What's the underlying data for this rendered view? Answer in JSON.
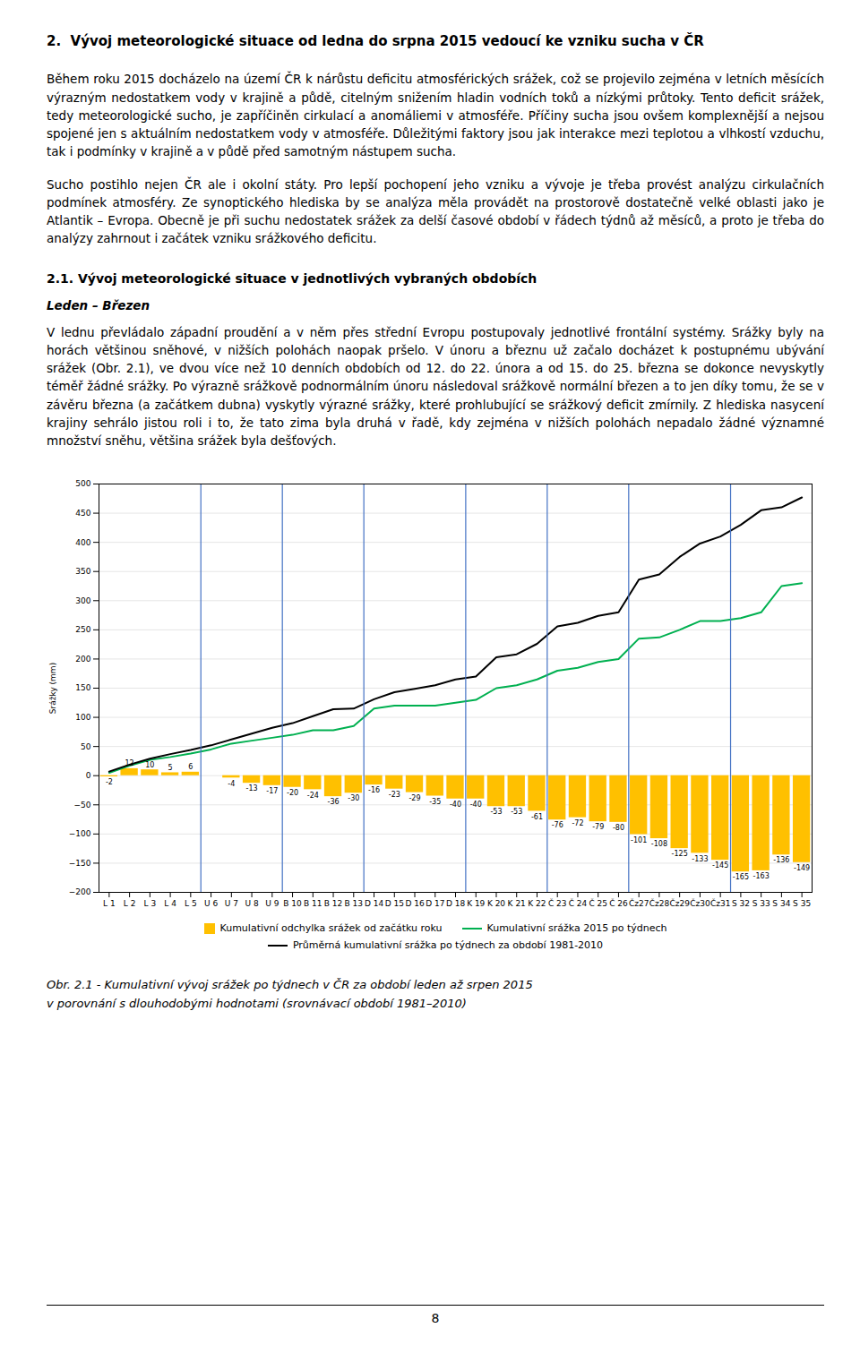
{
  "heading": "2.  Vývoj meteorologické situace od ledna do srpna 2015 vedoucí ke vzniku sucha v ČR",
  "para1": "Během roku 2015 docházelo na území ČR k nárůstu deficitu atmosférických srážek, což se projevilo zejména v letních měsících výrazným nedostatkem vody v krajině a půdě, citelným snižením hladin vodních toků a nízkými průtoky. Tento deficit srážek, tedy meteorologické sucho, je zapříčiněn cirkulací a anomáliemi v atmosféře. Příčiny sucha jsou ovšem komplexnější a nejsou spojené jen s aktuálním nedostatkem vody v atmosféře. Důležitými faktory jsou jak interakce mezi teplotou a vlhkostí vzduchu, tak i podmínky v krajině a v půdě před samotným nástupem sucha.",
  "para2": "Sucho postihlo nejen ČR ale i okolní státy. Pro lepší pochopení jeho vzniku a vývoje je třeba provést analýzu cirkulačních podmínek atmosféry. Ze synoptického hlediska by se analýza měla provádět na prostorově dostatečně velké oblasti jako je Atlantik – Evropa. Obecně je při suchu nedostatek srážek za delší časové období v řádech týdnů až měsíců, a proto je třeba do analýzy zahrnout i začátek vzniku srážkového deficitu.",
  "subheading": "2.1. Vývoj meteorologické situace v jednotlivých vybraných obdobích",
  "subsubheading": "Leden – Březen",
  "para3": "V lednu převládalo západní proudění a v něm přes střední Evropu postupovaly jednotlivé frontální systémy. Srážky byly na horách většinou sněhové, v nižších polohách naopak pršelo. V únoru a březnu už začalo docházet k postupnému ubývání srážek (Obr. 2.1), ve dvou více než 10 denních obdobích od 12. do 22. února a od 15. do 25. března se dokonce nevyskytly téměř žádné srážky. Po výrazně srážkově podnormálním únoru následoval srážkově normální březen a to jen díky tomu, že se v závěru března (a začátkem dubna) vyskytly výrazné srážky, které prohlubující se srážkový deficit zmírnily. Z hlediska nasycení krajiny sehrálo jistou roli i to, že tato zima byla druhá v řadě, kdy zejména v nižších polohách nepadalo žádné významné množství sněhu, většina srážek byla dešťových.",
  "chart_data": {
    "type": "bar",
    "ylabel": "Srážky (mm)",
    "categories": [
      "L 1",
      "L 2",
      "L 3",
      "L 4",
      "L 5",
      "U 6",
      "U 7",
      "U 8",
      "U 9",
      "B 10",
      "B 11",
      "B 12",
      "B 13",
      "D 14",
      "D 15",
      "D 16",
      "D 17",
      "D 18",
      "K 19",
      "K 20",
      "K 21",
      "K 22",
      "Č 23",
      "Č 24",
      "Č 25",
      "Č 26",
      "Čz27",
      "Čz28",
      "Čz29",
      "Čz30",
      "Čz31",
      "S 32",
      "S 33",
      "S 34",
      "S 35"
    ],
    "series": [
      {
        "name": "Kumulativní odchylka srážek od začátku roku",
        "type": "bar",
        "color": "#FFC000",
        "data_labels": true,
        "values": [
          -2,
          12,
          10,
          5,
          6,
          0,
          -4,
          -13,
          -17,
          -20,
          -24,
          -36,
          -30,
          -16,
          -23,
          -29,
          -35,
          -40,
          -40,
          -53,
          -53,
          -61,
          -76,
          -72,
          -79,
          -80,
          -101,
          -108,
          -125,
          -133,
          -145,
          -165,
          -163,
          -136,
          -149
        ]
      },
      {
        "name": "Kumulativní srážka 2015 po týdnech",
        "type": "line",
        "color": "#00B050",
        "values": [
          5,
          17,
          27,
          32,
          38,
          45,
          55,
          60,
          65,
          70,
          78,
          78,
          85,
          115,
          120,
          120,
          120,
          125,
          130,
          150,
          155,
          165,
          180,
          185,
          195,
          200,
          235,
          237,
          250,
          265,
          265,
          270,
          280,
          325,
          330
        ]
      },
      {
        "name": "Průměrná kumulativní srážka po týdnech za období 1981-2010",
        "type": "line",
        "color": "#000000",
        "values": [
          7,
          19,
          29,
          37,
          44,
          52,
          62,
          72,
          82,
          90,
          102,
          114,
          115,
          131,
          143,
          149,
          155,
          165,
          170,
          203,
          208,
          226,
          256,
          262,
          274,
          280,
          336,
          345,
          375,
          398,
          410,
          430,
          455,
          460,
          477
        ]
      }
    ],
    "ylim": [
      -200,
      500
    ],
    "yticks": [
      -200,
      -150,
      -100,
      -50,
      0,
      50,
      100,
      150,
      200,
      250,
      300,
      350,
      400,
      450,
      500
    ],
    "grid": true,
    "legend": "bottom",
    "section_dividers": {
      "x": [
        4.5,
        8.5,
        12.5,
        17.5,
        21.5,
        25.5,
        30.5
      ],
      "color": "#4472C4"
    }
  },
  "caption": [
    "Obr. 2.1 - Kumulativní vývoj srážek po týdnech v ČR za období leden až srpen 2015",
    "v porovnání s dlouhodobými hodnotami (srovnávací období 1981–2010)"
  ],
  "page_number": "8"
}
